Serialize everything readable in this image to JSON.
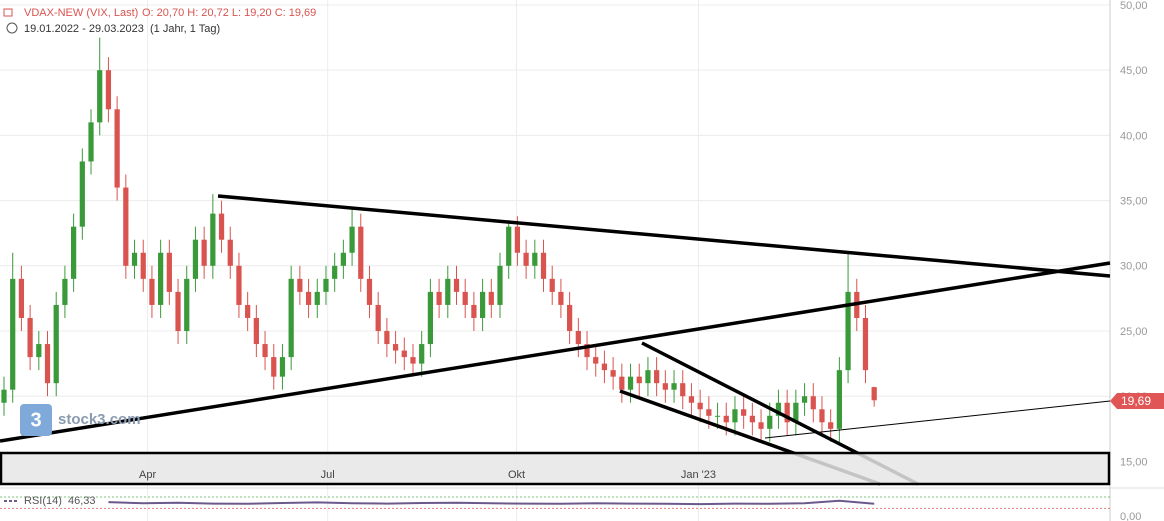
{
  "header": {
    "instrument": "VDAX-NEW (VIX, Last)",
    "ohlc": "O: 20,70  H: 20,72  L: 19,20  C: 19,69",
    "range": "19.01.2022 - 29.03.2023",
    "period": "(1 Jahr, 1 Tag)"
  },
  "logo": "stock3.com",
  "last_price_label": "19,69",
  "chart_data": {
    "type": "candlestick",
    "up_color": "#3a9a3a",
    "down_color": "#d9534f",
    "open": [
      19.5,
      20.5,
      29,
      26,
      23,
      24,
      21,
      27,
      29,
      33,
      38,
      41,
      45,
      42,
      36,
      30,
      31,
      29,
      27,
      31,
      28,
      25,
      29,
      32,
      30,
      34,
      32,
      30,
      27,
      26,
      24,
      23,
      21.5,
      23,
      29,
      28,
      27,
      28,
      29,
      30,
      31,
      33,
      29,
      27,
      25,
      24,
      23.5,
      23,
      22.5,
      24,
      28,
      27,
      29,
      28,
      27,
      26,
      28,
      27,
      30,
      33,
      31,
      30,
      31,
      29,
      28,
      27,
      25,
      24,
      23,
      22.5,
      22,
      21.5,
      20.5,
      21.5,
      21,
      22,
      21,
      20.5,
      21,
      20,
      19.5,
      19,
      18.5,
      18.5,
      18,
      19,
      18.5,
      18,
      17.5,
      18.5,
      19.5,
      18,
      19.5,
      20,
      19,
      18,
      17.5,
      22,
      28,
      26,
      20.7
    ],
    "high": [
      21.5,
      31,
      30,
      27,
      25,
      25,
      28,
      30,
      34,
      39,
      42,
      47.5,
      46,
      43,
      37,
      32,
      32,
      30,
      32,
      32,
      29,
      30,
      33,
      33,
      35.5,
      35,
      33,
      31,
      28,
      27,
      25,
      24,
      24,
      30,
      30,
      29,
      29,
      30,
      31,
      32,
      34.5,
      34,
      30,
      28,
      26,
      25,
      24.5,
      24,
      25,
      29,
      29,
      30,
      30,
      29,
      28,
      29,
      29,
      31,
      33.5,
      33.8,
      32,
      32,
      32,
      30,
      29,
      28,
      26,
      25,
      24,
      23.5,
      23,
      22.5,
      22.5,
      22.5,
      23,
      23,
      22,
      22,
      22,
      21,
      20.5,
      20,
      19.5,
      19.5,
      20,
      20,
      19.5,
      19,
      19.5,
      20.5,
      20.5,
      20.5,
      21,
      21,
      20,
      19,
      23,
      31,
      29,
      27,
      20.72
    ],
    "low": [
      18.5,
      19.5,
      25,
      22,
      22,
      20,
      20,
      26,
      28,
      32,
      37,
      40,
      41,
      35,
      29,
      29,
      28,
      26,
      26,
      27,
      24,
      24,
      28,
      29,
      29,
      31,
      29,
      26,
      25,
      23,
      22,
      20.5,
      20.5,
      22,
      27,
      26,
      26,
      27,
      28,
      29,
      30,
      28,
      26,
      24,
      23,
      22.5,
      22,
      21.5,
      21.5,
      23,
      26,
      26,
      27,
      26,
      25,
      25,
      26,
      26,
      29,
      30,
      29,
      29,
      28,
      27,
      26,
      24,
      23,
      22,
      21.5,
      21,
      20.5,
      19.5,
      19.5,
      20,
      20,
      20,
      19.5,
      19.5,
      19,
      18.5,
      18,
      17.5,
      17.5,
      17,
      17,
      17.5,
      17,
      16.5,
      16.5,
      17.5,
      17,
      17,
      18.5,
      18,
      17,
      16.5,
      16.5,
      21,
      25,
      21,
      19.2
    ],
    "close": [
      20.5,
      29,
      26,
      23,
      24,
      21,
      27,
      29,
      33,
      38,
      41,
      45,
      42,
      36,
      30,
      31,
      29,
      27,
      31,
      28,
      25,
      29,
      32,
      30,
      34,
      32,
      30,
      27,
      26,
      24,
      23,
      21.5,
      23,
      29,
      28,
      27,
      28,
      29,
      30,
      31,
      33,
      29,
      27,
      25,
      24,
      23.5,
      23,
      22.5,
      24,
      28,
      27,
      29,
      28,
      27,
      26,
      28,
      27,
      30,
      33,
      31,
      30,
      31,
      29,
      28,
      27,
      25,
      24,
      23,
      22.5,
      22,
      21.5,
      20.5,
      21.5,
      21,
      22,
      21,
      20.5,
      21,
      20,
      19.5,
      19,
      18.5,
      18.5,
      18,
      19,
      18.5,
      18,
      17.5,
      18.5,
      19.5,
      18,
      19.5,
      20,
      19,
      18,
      17.5,
      22,
      28,
      26,
      22,
      19.69
    ],
    "xlim": [
      -0.46,
      127.1
    ],
    "xticks": [
      {
        "value": 16.5,
        "label": "Apr"
      },
      {
        "value": 37.2,
        "label": "Jul"
      },
      {
        "value": 58.9,
        "label": "Okt"
      },
      {
        "value": 79.8,
        "label": "Jan '23"
      }
    ],
    "ylim": [
      13.04,
      50.38
    ],
    "yticks": [
      {
        "value": 15,
        "label": "15,00"
      },
      {
        "value": 20,
        "label": "20,00"
      },
      {
        "value": 25,
        "label": "25,00"
      },
      {
        "value": 30,
        "label": "30,00"
      },
      {
        "value": 35,
        "label": "35,00"
      },
      {
        "value": 40,
        "label": "40,00"
      },
      {
        "value": 45,
        "label": "45,00"
      },
      {
        "value": 50,
        "label": "50,00"
      }
    ],
    "grid": true,
    "rsi": {
      "name": "RSI(14)",
      "last_label": "46,33",
      "color": "#6a5a8c",
      "x": [
        12,
        16,
        20,
        24,
        28,
        32,
        36,
        40,
        44,
        48,
        52,
        56,
        60,
        64,
        68,
        72,
        76,
        80,
        84,
        88,
        92,
        96,
        100
      ],
      "values": [
        52,
        48,
        50,
        47,
        46,
        49,
        51,
        48,
        47,
        49,
        50,
        48,
        47,
        46,
        48,
        47,
        46,
        45,
        47,
        46,
        48,
        57,
        46.33
      ],
      "ylim": [
        0,
        100
      ],
      "yticks": [
        {
          "value": 0,
          "label": "0,00"
        }
      ],
      "levels": [
        70,
        30
      ]
    }
  }
}
